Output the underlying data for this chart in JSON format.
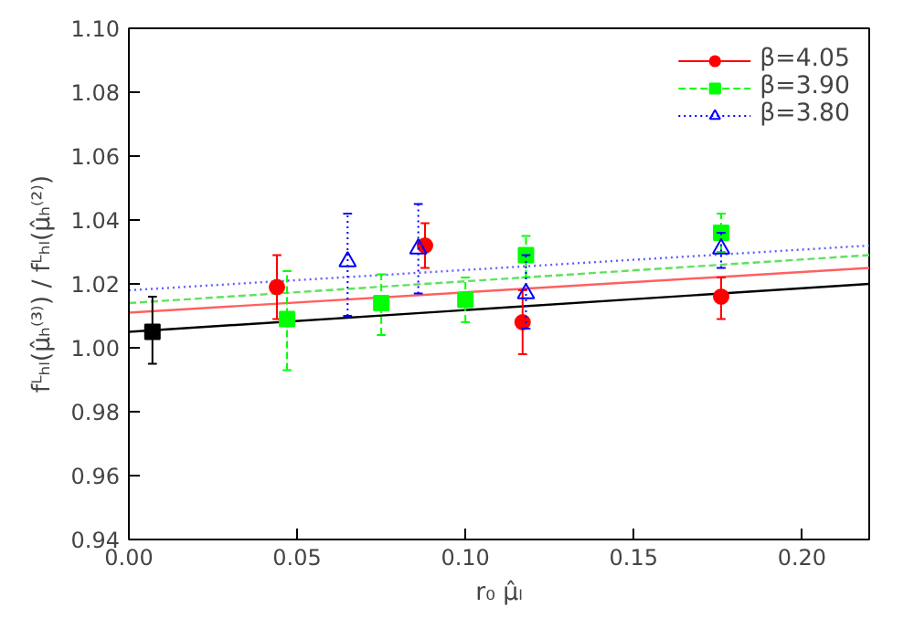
{
  "chart_data": {
    "type": "scatter",
    "xlabel": "r₀ μ̂ₗ",
    "ylabel": "fᴸₕₗ(μ̂ₕ⁽³⁾) / fᴸₕₗ(μ̂ₕ⁽²⁾)",
    "xlim": [
      0,
      0.22
    ],
    "ylim": [
      0.94,
      1.1
    ],
    "xticks": [
      {
        "value": 0,
        "label": "0.00"
      },
      0.05,
      {
        "value": 0.1,
        "label": "0.10"
      },
      0.15,
      {
        "value": 0.2,
        "label": "0.20"
      }
    ],
    "yticks": [
      0.94,
      0.96,
      0.98,
      {
        "value": 1.0,
        "label": "1.00"
      },
      1.02,
      1.04,
      1.06,
      1.08,
      {
        "value": 1.1,
        "label": "1.10"
      }
    ],
    "grid": false,
    "legend": "top right",
    "series": [
      {
        "type": "line",
        "color": "#000000",
        "line_style": "solid",
        "x": [
          0,
          0.22
        ],
        "values": [
          1.005,
          1.02
        ]
      },
      {
        "type": "line",
        "color": "#ff6060",
        "line_style": "solid",
        "x": [
          0,
          0.22
        ],
        "values": [
          1.011,
          1.025
        ]
      },
      {
        "type": "line",
        "color": "#60e060",
        "line_style": "dashed",
        "x": [
          0,
          0.22
        ],
        "values": [
          1.014,
          1.029
        ]
      },
      {
        "type": "line",
        "color": "#6060ff",
        "line_style": "dotted",
        "x": [
          0,
          0.22
        ],
        "values": [
          1.018,
          1.032
        ]
      },
      {
        "name": "β=4.05",
        "color": "#ff0000",
        "marker": "circle",
        "line_style": "solid",
        "x": [
          0.044,
          0.088,
          0.117,
          0.176
        ],
        "values": [
          1.019,
          1.032,
          1.008,
          1.016
        ],
        "errors": [
          [
            1.009,
            1.029
          ],
          [
            1.025,
            1.039
          ],
          [
            0.998,
            1.018
          ],
          [
            1.009,
            1.022
          ]
        ]
      },
      {
        "name": "β=3.90",
        "color": "#00ff00",
        "marker": "square",
        "line_style": "dashed",
        "x": [
          0.047,
          0.075,
          0.1,
          0.118,
          0.176
        ],
        "values": [
          1.009,
          1.014,
          1.015,
          1.029,
          1.036
        ],
        "errors": [
          [
            0.993,
            1.024
          ],
          [
            1.004,
            1.023
          ],
          [
            1.008,
            1.022
          ],
          [
            1.022,
            1.035
          ],
          [
            1.03,
            1.042
          ]
        ]
      },
      {
        "name": "β=3.80",
        "color": "#0000ff",
        "marker": "triangle",
        "line_style": "dotted",
        "x": [
          0.065,
          0.086,
          0.118,
          0.176
        ],
        "values": [
          1.027,
          1.031,
          1.017,
          1.031
        ],
        "errors": [
          [
            1.01,
            1.042
          ],
          [
            1.017,
            1.045
          ],
          [
            1.006,
            1.029
          ],
          [
            1.025,
            1.036
          ]
        ]
      },
      {
        "color": "#000000",
        "marker": "square",
        "line_style": "solid",
        "x": [
          0.007
        ],
        "values": [
          1.005
        ],
        "errors": [
          [
            0.995,
            1.016
          ]
        ]
      }
    ]
  }
}
